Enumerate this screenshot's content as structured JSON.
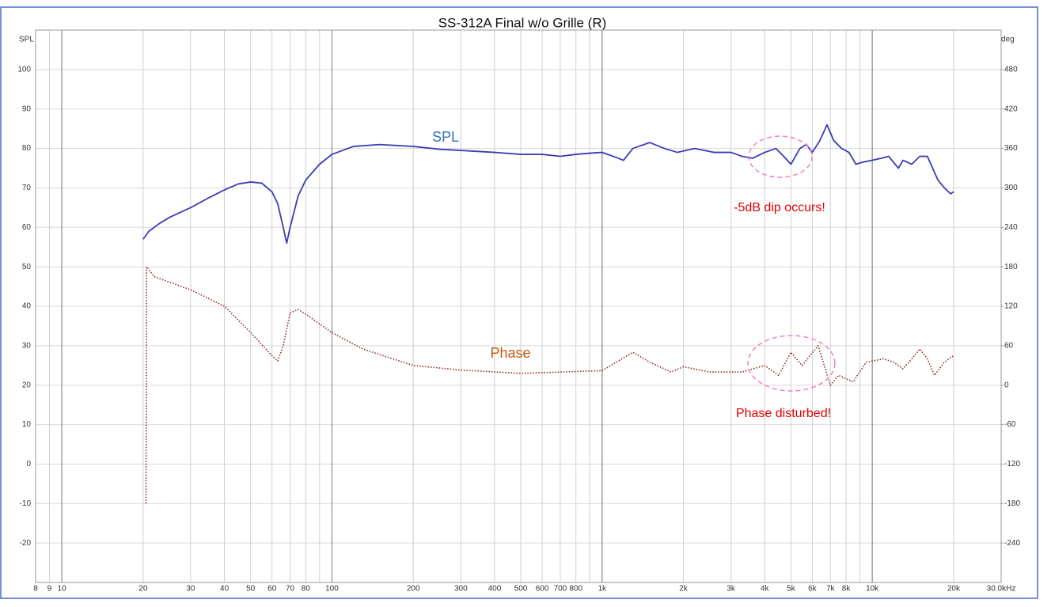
{
  "chart_data": {
    "type": "line",
    "title": "SS-312A Final w/o Grille (R)",
    "y_label": "SPL",
    "y2_label": "deg",
    "xscale": "log",
    "grid": true,
    "xlim": [
      8,
      30000
    ],
    "xticks": [
      8,
      9,
      10,
      20,
      30,
      40,
      50,
      60,
      70,
      80,
      100,
      200,
      300,
      400,
      500,
      600,
      700,
      800,
      {
        "value": 1000,
        "label": "1k"
      },
      {
        "value": 2000,
        "label": "2k"
      },
      {
        "value": 3000,
        "label": "3k"
      },
      {
        "value": 4000,
        "label": "4k"
      },
      {
        "value": 5000,
        "label": "5k"
      },
      {
        "value": 6000,
        "label": "6k"
      },
      {
        "value": 7000,
        "label": "7k"
      },
      {
        "value": 8000,
        "label": "8k"
      },
      {
        "value": 10000,
        "label": "10k"
      },
      {
        "value": 20000,
        "label": "20k"
      },
      {
        "value": 30000,
        "label": "30.0kHz"
      }
    ],
    "xminor": [
      90,
      900,
      9000
    ],
    "xmajor": [
      10,
      100,
      1000,
      10000
    ],
    "ylim": [
      -30,
      110
    ],
    "yticks": [
      -20,
      -10,
      0,
      10,
      20,
      30,
      40,
      50,
      60,
      70,
      80,
      90,
      100
    ],
    "y2lim": [
      -300,
      540
    ],
    "y2ticks": [
      -240,
      -180,
      -120,
      -60,
      0,
      60,
      120,
      180,
      240,
      300,
      360,
      420,
      480
    ],
    "series": [
      {
        "name": "SPL",
        "color": "#3c3cb4",
        "label_color": "#2e75b6",
        "x": [
          20,
          21,
          23,
          25,
          30,
          35,
          40,
          45,
          50,
          55,
          60,
          63,
          66,
          68,
          70,
          75,
          80,
          90,
          100,
          120,
          150,
          200,
          250,
          300,
          400,
          500,
          600,
          700,
          800,
          900,
          1000,
          1100,
          1200,
          1300,
          1500,
          1700,
          1900,
          2200,
          2600,
          3000,
          3300,
          3600,
          4000,
          4400,
          4700,
          5000,
          5400,
          5700,
          6000,
          6400,
          6800,
          7200,
          7700,
          8200,
          8700,
          9200,
          10000,
          10800,
          11500,
          12500,
          13000,
          14000,
          15000,
          16000,
          17500,
          18500,
          19500,
          20000
        ],
        "values": [
          57,
          59,
          61,
          62.5,
          65,
          67.5,
          69.5,
          71,
          71.5,
          71.2,
          69,
          66,
          60,
          56,
          60,
          68,
          72,
          76,
          78.5,
          80.5,
          81,
          80.5,
          79.8,
          79.5,
          79,
          78.5,
          78.5,
          78,
          78.5,
          78.8,
          79,
          78,
          77,
          80,
          81.5,
          80,
          79,
          80,
          79,
          79,
          78,
          77.5,
          79,
          80,
          78,
          76,
          80,
          81,
          79,
          82,
          86,
          82,
          80,
          79,
          76,
          76.5,
          77,
          77.5,
          78,
          75,
          77,
          76,
          78,
          78,
          72,
          70,
          68.5,
          69
        ]
      },
      {
        "name": "Phase",
        "color": "#8b2a2a",
        "label_color": "#c55a11",
        "axis": "y2",
        "dash": "dotted",
        "x": [
          20.5,
          20.6,
          22,
          30,
          40,
          50,
          60,
          63,
          66,
          70,
          75,
          80,
          100,
          130,
          200,
          300,
          500,
          700,
          1000,
          1300,
          1500,
          1800,
          2000,
          2500,
          3300,
          4000,
          4500,
          5000,
          5500,
          6300,
          7000,
          7500,
          8500,
          9500,
          11000,
          12000,
          13000,
          14000,
          15000,
          16000,
          17000,
          18500,
          20000
        ],
        "values": [
          -180,
          180,
          165,
          145,
          120,
          80,
          45,
          37,
          60,
          110,
          115,
          108,
          80,
          55,
          30,
          23,
          18,
          20,
          22,
          50,
          35,
          20,
          28,
          20,
          20,
          30,
          15,
          50,
          30,
          60,
          0,
          15,
          5,
          35,
          40,
          35,
          25,
          40,
          55,
          40,
          15,
          35,
          45
        ]
      }
    ],
    "annotations": [
      "-5dB dip occurs!",
      "Phase disturbed!"
    ]
  }
}
